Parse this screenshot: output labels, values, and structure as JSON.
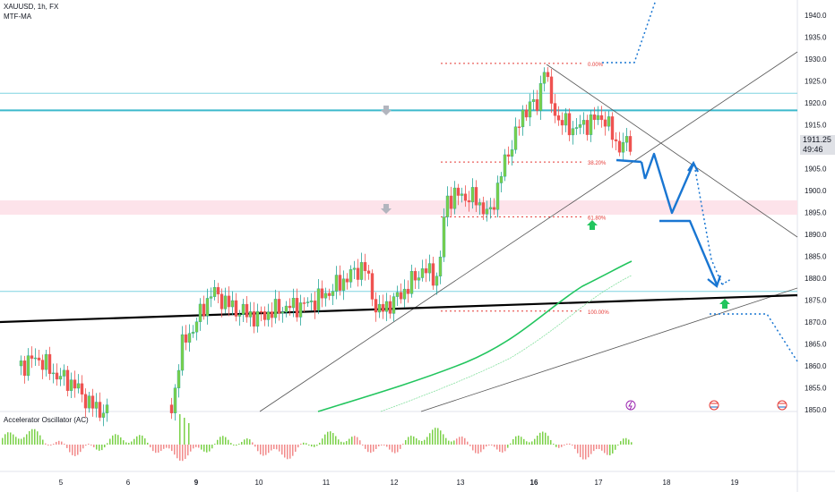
{
  "header": {
    "symbol_line": "XAUUSD, 1h, FX",
    "indicator_line": "MTF-MA"
  },
  "oscillator": {
    "label": "Accelerator Oscillator (AC)"
  },
  "price_badge": {
    "price": "1911.25",
    "countdown": "49:46"
  },
  "chart_data": {
    "type": "candlestick",
    "symbol": "XAUUSD",
    "interval": "1h",
    "y_axis": {
      "ticks": [
        1850,
        1855,
        1860,
        1865,
        1870,
        1875,
        1880,
        1885,
        1890,
        1895,
        1900,
        1905,
        1910,
        1915,
        1920,
        1925,
        1930,
        1935,
        1940
      ],
      "range": [
        1848,
        1943
      ]
    },
    "x_axis": {
      "ticks": [
        "5",
        "6",
        "9",
        "10",
        "11",
        "12",
        "13",
        "16",
        "17",
        "18",
        "19"
      ],
      "bold_ticks": [
        "9",
        "16"
      ]
    },
    "fib_levels": [
      {
        "label": "0.00%",
        "price": 1929
      },
      {
        "label": "38.20%",
        "price": 1906.5
      },
      {
        "label": "61.80%",
        "price": 1894
      },
      {
        "label": "100.00%",
        "price": 1872.5
      }
    ],
    "horizontal_levels": [
      {
        "price": 1922.2,
        "color": "#7fd3e0"
      },
      {
        "price": 1918.3,
        "color": "#3cb9cc"
      },
      {
        "price": 1877,
        "color": "#7fd3e0"
      }
    ],
    "zone": {
      "from": 1894.5,
      "to": 1897.5,
      "color": "#fde3ea"
    },
    "last_price": 1911.25,
    "colors": {
      "up": "#26a69a",
      "up_fill": "#7bd148",
      "down": "#ef5350",
      "ma_fast": "#22c55e",
      "projection": "#1976d2"
    }
  }
}
